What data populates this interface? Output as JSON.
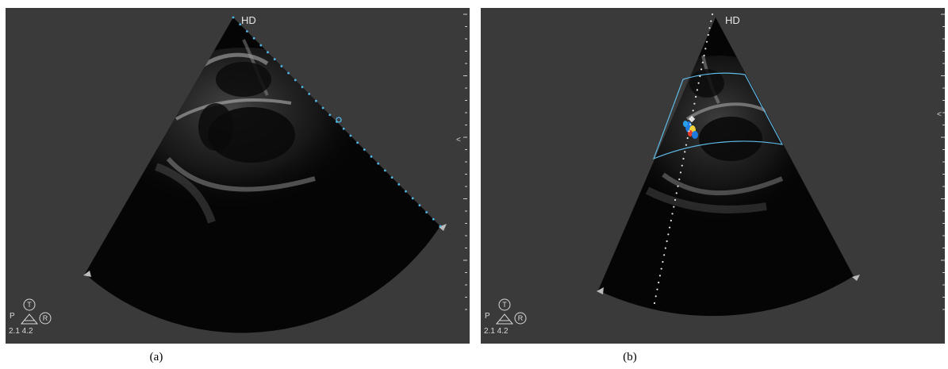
{
  "panels": [
    {
      "id": "a",
      "caption": "(a)",
      "mode_label": "HD",
      "probe": {
        "orientation_letter": "P",
        "top_circle": "T",
        "right_circle": "R",
        "values": "2.1 4.2"
      },
      "depth_arrow": "<"
    },
    {
      "id": "b",
      "caption": "(b)",
      "mode_label": "HD",
      "probe": {
        "orientation_letter": "P",
        "top_circle": "T",
        "right_circle": "R",
        "values": "2.1 4.2"
      },
      "depth_arrow": "<"
    }
  ],
  "colors": {
    "background": "#3a3a3a",
    "sector": "#050505",
    "marker_dots": "#4fb6e8",
    "color_box": "#5fb9e6",
    "doppler_red": "#e33a2a",
    "doppler_blue": "#1e7be0",
    "doppler_yellow": "#f2d23a"
  }
}
